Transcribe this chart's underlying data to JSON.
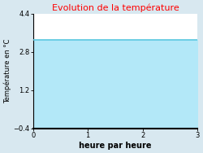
{
  "title": "Evolution de la température",
  "title_color": "#ff0000",
  "xlabel": "heure par heure",
  "ylabel": "Température en °C",
  "xlim": [
    0,
    3
  ],
  "ylim": [
    -0.4,
    4.4
  ],
  "xticks": [
    0,
    1,
    2,
    3
  ],
  "yticks": [
    -0.4,
    1.2,
    2.8,
    4.4
  ],
  "line_y": 3.3,
  "line_color": "#5bc8e0",
  "fill_color": "#b3e8f8",
  "plot_bg_color": "#ffffff",
  "figure_bg_color": "#d8e8f0",
  "line_width": 1.2,
  "x_data": [
    0,
    3
  ],
  "y_data": [
    3.3,
    3.3
  ],
  "title_fontsize": 8,
  "label_fontsize": 6,
  "tick_fontsize": 6,
  "xlabel_fontsize": 7
}
